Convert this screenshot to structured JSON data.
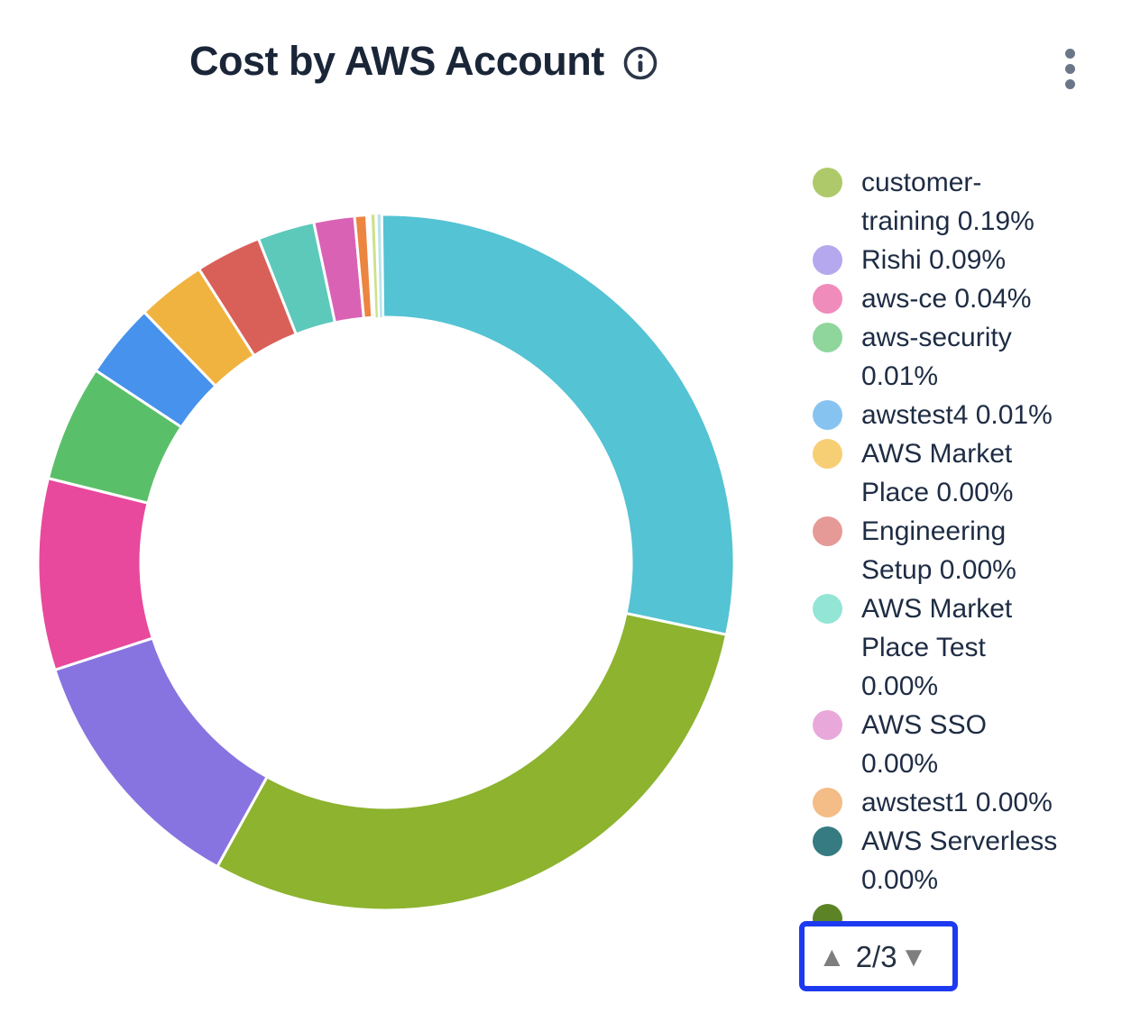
{
  "header": {
    "title": "Cost by AWS Account",
    "info_icon": "info-circle",
    "menu_icon": "kebab-vertical-dots"
  },
  "legend": {
    "pagination": {
      "up": "▲",
      "indicator": "2/3",
      "down": "▼",
      "current_page": 2,
      "total_pages": 3,
      "highlight_color": "#1d3af0"
    }
  },
  "chart_data": {
    "type": "donut",
    "title": "Cost by AWS Account",
    "legend_position": "right",
    "inner_radius_ratio": 0.7,
    "legend_items": [
      {
        "label": "customer-training",
        "value_pct": "0.19%",
        "color": "#aec969",
        "lines": [
          "customer-",
          "training 0.19%"
        ]
      },
      {
        "label": "Rishi",
        "value_pct": "0.09%",
        "color": "#b5a8ef",
        "lines": [
          "Rishi 0.09%"
        ]
      },
      {
        "label": "aws-ce",
        "value_pct": "0.04%",
        "color": "#ef8cbb",
        "lines": [
          "aws-ce 0.04%"
        ]
      },
      {
        "label": "aws-security",
        "value_pct": "0.01%",
        "color": "#8ed69c",
        "lines": [
          "aws-security",
          "0.01%"
        ]
      },
      {
        "label": "awstest4",
        "value_pct": "0.01%",
        "color": "#87c3f1",
        "lines": [
          "awstest4 0.01%"
        ]
      },
      {
        "label": "AWS Market Place",
        "value_pct": "0.00%",
        "color": "#f6cf75",
        "lines": [
          "AWS Market",
          "Place 0.00%"
        ]
      },
      {
        "label": "Engineering Setup",
        "value_pct": "0.00%",
        "color": "#e59a97",
        "lines": [
          "Engineering",
          "Setup 0.00%"
        ]
      },
      {
        "label": "AWS Market Place Test",
        "value_pct": "0.00%",
        "color": "#93e5d5",
        "lines": [
          "AWS Market",
          "Place Test",
          "0.00%"
        ]
      },
      {
        "label": "AWS SSO",
        "value_pct": "0.00%",
        "color": "#e9a8da",
        "lines": [
          "AWS SSO",
          "0.00%"
        ]
      },
      {
        "label": "awstest1",
        "value_pct": "0.00%",
        "color": "#f4bc87",
        "lines": [
          "awstest1 0.00%"
        ]
      },
      {
        "label": "AWS Serverless",
        "value_pct": "0.00%",
        "color": "#367b82",
        "lines": [
          "AWS Serverless",
          "0.00%"
        ]
      },
      {
        "label": "",
        "value_pct": "",
        "color": "#5c8426",
        "lines": [],
        "partially_hidden_by_pagination": true
      }
    ],
    "slices": [
      {
        "color": "#54c3d3",
        "start_deg": -0.7,
        "end_deg": 102.0,
        "approx_share_pct": 28.5
      },
      {
        "color": "#8db32f",
        "start_deg": 102.0,
        "end_deg": 209.0,
        "approx_share_pct": 29.7
      },
      {
        "color": "#8874e0",
        "start_deg": 209.0,
        "end_deg": 252.0,
        "approx_share_pct": 11.9
      },
      {
        "color": "#e8499c",
        "start_deg": 252.0,
        "end_deg": 284.0,
        "approx_share_pct": 8.9
      },
      {
        "color": "#5abf69",
        "start_deg": 284.0,
        "end_deg": 303.5,
        "approx_share_pct": 5.4
      },
      {
        "color": "#4692ec",
        "start_deg": 303.5,
        "end_deg": 316.0,
        "approx_share_pct": 3.5
      },
      {
        "color": "#f1b33f",
        "start_deg": 316.0,
        "end_deg": 327.5,
        "approx_share_pct": 3.2
      },
      {
        "color": "#d96058",
        "start_deg": 327.5,
        "end_deg": 338.5,
        "approx_share_pct": 3.1
      },
      {
        "color": "#5cc9bb",
        "start_deg": 338.5,
        "end_deg": 348.0,
        "approx_share_pct": 2.6
      },
      {
        "color": "#da62b5",
        "start_deg": 348.0,
        "end_deg": 354.8,
        "approx_share_pct": 1.9
      },
      {
        "color": "#ec8540",
        "start_deg": 354.8,
        "end_deg": 356.8,
        "approx_share_pct": 0.6
      },
      {
        "color": "#cfe08c",
        "start_deg": 357.6,
        "end_deg": 358.1,
        "approx_share_pct": 0.1,
        "hairline": true
      },
      {
        "color": "#b8e4ea",
        "start_deg": 358.6,
        "end_deg": 359.1,
        "approx_share_pct": 0.1,
        "hairline": true
      }
    ]
  }
}
